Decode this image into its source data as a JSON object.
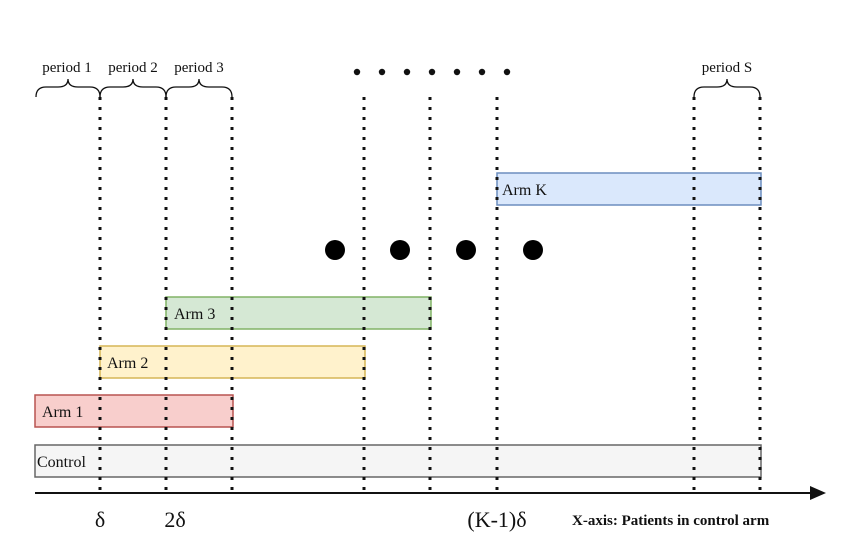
{
  "periods": [
    {
      "label": "period 1"
    },
    {
      "label": "period 2"
    },
    {
      "label": "period 3"
    },
    {
      "label": "period S"
    }
  ],
  "arms": [
    {
      "label": "Control",
      "fill": "#f5f5f5",
      "stroke": "#666666"
    },
    {
      "label": "Arm 1",
      "fill": "#f8cecc",
      "stroke": "#b85450"
    },
    {
      "label": "Arm 2",
      "fill": "#fff2cc",
      "stroke": "#d6b656"
    },
    {
      "label": "Arm 3",
      "fill": "#d5e8d4",
      "stroke": "#82b366"
    },
    {
      "label": "Arm K",
      "fill": "#dae8fc",
      "stroke": "#6c8ebf"
    }
  ],
  "axis": {
    "ticks": [
      "δ",
      "2δ",
      "(K-1)δ"
    ],
    "title": "X-axis: Patients in control arm"
  }
}
